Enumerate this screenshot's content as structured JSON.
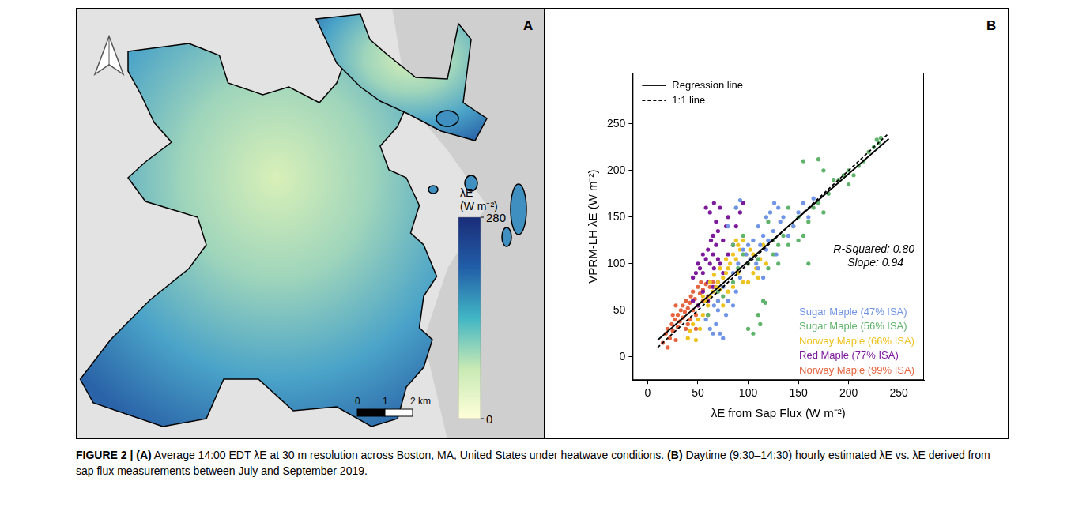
{
  "caption": {
    "label": "FIGURE 2 |",
    "text": "(A) Average 14:00 EDT λE at 30 m resolution across Boston, MA, United States under heatwave conditions. (B) Daytime (9:30–14:30) hourly estimated λE vs. λE derived from sap flux measurements between July and September 2019."
  },
  "map": {
    "panel_label": "A",
    "colorbar": {
      "title": "λE (W m⁻²)",
      "range": [
        0,
        280
      ],
      "ticks": [
        0,
        280
      ],
      "colors": [
        "#ffffd9",
        "#c7e9b4",
        "#41b6c4",
        "#225ea8",
        "#1a2c78"
      ]
    },
    "scale_bar": {
      "ticks": [
        {
          "value": 0,
          "label": "0"
        },
        {
          "value": 1,
          "label": "1"
        },
        {
          "value": 2,
          "label": "2 km"
        }
      ]
    }
  },
  "chart_data": {
    "type": "scatter",
    "panel_label": "B",
    "x_label": "λE from Sap Flux (W m⁻²)",
    "y_label": "VPRM-LH λE (W m⁻²)",
    "xlim": [
      -15,
      275
    ],
    "ylim": [
      -25,
      305
    ],
    "xticks": [
      0,
      50,
      100,
      150,
      200,
      250
    ],
    "yticks": [
      0,
      50,
      100,
      150,
      200,
      250
    ],
    "grid": false,
    "legend": "upper left",
    "annotations": [
      "R-Squared: 0.80",
      "Slope: 0.94"
    ],
    "series": [
      {
        "name": "Regression line",
        "type": "line",
        "line_style": "solid",
        "color": "#000000",
        "x": [
          10,
          240
        ],
        "values": [
          18,
          234
        ]
      },
      {
        "name": "1:1 line",
        "type": "line",
        "line_style": "dashed",
        "color": "#000000",
        "x": [
          10,
          240
        ],
        "values": [
          10,
          240
        ]
      },
      {
        "name": "Sugar Maple (47% ISA)",
        "type": "scatter",
        "marker": "circle",
        "color": "#7094e6",
        "x": [
          58,
          62,
          65,
          68,
          70,
          72,
          75,
          78,
          80,
          85,
          88,
          90,
          92,
          95,
          98,
          100,
          102,
          105,
          108,
          110,
          112,
          115,
          118,
          120,
          122,
          125,
          126,
          128,
          130,
          132,
          135,
          140,
          145,
          150,
          155,
          160,
          165,
          88,
          92,
          80,
          75,
          85,
          110,
          115,
          118,
          70,
          66
        ],
        "values": [
          40,
          30,
          25,
          35,
          50,
          25,
          20,
          45,
          60,
          55,
          70,
          100,
          85,
          115,
          110,
          120,
          105,
          125,
          100,
          140,
          120,
          130,
          150,
          125,
          155,
          135,
          165,
          110,
          160,
          145,
          150,
          130,
          140,
          155,
          165,
          150,
          170,
          160,
          168,
          140,
          75,
          90,
          95,
          85,
          115,
          60,
          55
        ]
      },
      {
        "name": "Sugar Maple (56% ISA)",
        "type": "scatter",
        "marker": "circle",
        "color": "#5fb36a",
        "x": [
          100,
          105,
          110,
          112,
          115,
          117,
          120,
          125,
          100,
          95,
          110,
          90,
          85,
          130,
          135,
          140,
          145,
          150,
          150,
          155,
          155,
          160,
          165,
          170,
          170,
          175,
          180,
          185,
          190,
          195,
          200,
          205,
          210,
          215,
          220,
          225,
          230,
          232,
          228,
          120,
          88,
          75,
          70,
          60,
          130,
          200,
          175,
          160,
          85,
          95,
          125,
          140
        ],
        "values": [
          30,
          25,
          45,
          35,
          60,
          58,
          95,
          110,
          100,
          110,
          105,
          95,
          80,
          120,
          130,
          120,
          140,
          150,
          125,
          130,
          210,
          145,
          160,
          165,
          212,
          155,
          175,
          190,
          190,
          195,
          200,
          195,
          205,
          210,
          220,
          225,
          230,
          235,
          233,
          145,
          160,
          65,
          70,
          45,
          100,
          185,
          200,
          100,
          120,
          130,
          125,
          160
        ]
      },
      {
        "name": "Norway Maple (66% ISA)",
        "type": "scatter",
        "marker": "circle",
        "color": "#eec21f",
        "x": [
          40,
          42,
          45,
          48,
          50,
          52,
          55,
          58,
          60,
          62,
          65,
          68,
          70,
          72,
          75,
          78,
          80,
          82,
          85,
          88,
          90,
          92,
          95,
          98,
          100,
          102,
          105,
          108,
          110,
          112,
          115,
          72,
          78,
          85,
          90,
          95,
          62,
          66,
          70,
          80,
          88,
          100,
          75,
          55,
          105,
          118
        ],
        "values": [
          20,
          28,
          35,
          18,
          40,
          30,
          45,
          60,
          55,
          65,
          70,
          75,
          80,
          72,
          85,
          90,
          95,
          100,
          110,
          105,
          120,
          115,
          125,
          110,
          100,
          115,
          90,
          95,
          85,
          105,
          120,
          95,
          105,
          75,
          90,
          80,
          80,
          88,
          60,
          70,
          125,
          80,
          55,
          65,
          110,
          100
        ]
      },
      {
        "name": "Red Maple (77% ISA)",
        "type": "scatter",
        "marker": "circle",
        "color": "#7d1a9c",
        "x": [
          45,
          48,
          50,
          52,
          55,
          55,
          58,
          60,
          60,
          62,
          63,
          65,
          65,
          66,
          68,
          68,
          70,
          70,
          72,
          72,
          75,
          75,
          78,
          80,
          80,
          62,
          58,
          66,
          70,
          55,
          60,
          50,
          85,
          88,
          92,
          95,
          45,
          65
        ],
        "values": [
          85,
          90,
          100,
          95,
          110,
          90,
          105,
          115,
          80,
          100,
          125,
          130,
          110,
          95,
          120,
          145,
          105,
          135,
          100,
          160,
          125,
          90,
          140,
          110,
          150,
          155,
          160,
          165,
          80,
          70,
          60,
          55,
          120,
          140,
          155,
          165,
          60,
          75
        ]
      },
      {
        "name": "Norway Maple (99% ISA)",
        "type": "scatter",
        "marker": "circle",
        "color": "#e4653f",
        "x": [
          15,
          18,
          20,
          20,
          22,
          24,
          25,
          27,
          28,
          30,
          30,
          32,
          33,
          35,
          35,
          37,
          38,
          40,
          40,
          42,
          43,
          45,
          45,
          47,
          48,
          50,
          50,
          52,
          53,
          55,
          55,
          58,
          60,
          62,
          65,
          28,
          25,
          38,
          42,
          60,
          48
        ],
        "values": [
          15,
          25,
          10,
          30,
          20,
          35,
          28,
          40,
          18,
          45,
          32,
          38,
          50,
          42,
          55,
          48,
          60,
          52,
          35,
          58,
          65,
          50,
          70,
          62,
          45,
          75,
          55,
          68,
          80,
          60,
          72,
          78,
          65,
          75,
          80,
          55,
          45,
          30,
          40,
          45,
          30
        ]
      }
    ]
  }
}
